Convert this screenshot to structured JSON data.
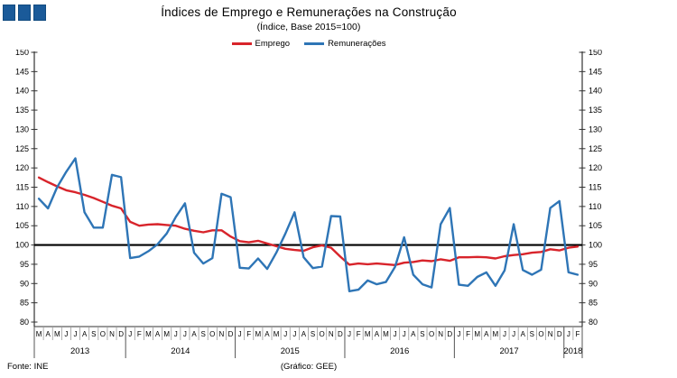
{
  "header": {
    "title": "Índices de Emprego e Remunerações na Construção",
    "subtitle": "(Índice, Base 2015=100)"
  },
  "legend": [
    {
      "label": "Emprego",
      "color": "#D8242B"
    },
    {
      "label": "Remunerações",
      "color": "#2E75B6"
    }
  ],
  "footer": {
    "source": "Fonte: INE",
    "credit": "(Gráfico: GEE)"
  },
  "logo": {
    "squares": 3,
    "color": "#1A5A99"
  },
  "chart_data": {
    "type": "line",
    "title": "Índices de Emprego e Remunerações na Construção",
    "subtitle": "(Índice, Base 2015=100)",
    "ylim": [
      80,
      150
    ],
    "ytick_step": 5,
    "y_axis_sides": "both",
    "grid": false,
    "baseline": 100,
    "legend_position": "top-center",
    "x_months": [
      "M",
      "A",
      "M",
      "J",
      "J",
      "A",
      "S",
      "O",
      "N",
      "D",
      "J",
      "F",
      "M",
      "A",
      "M",
      "J",
      "J",
      "A",
      "S",
      "O",
      "N",
      "D",
      "J",
      "F",
      "M",
      "A",
      "M",
      "J",
      "J",
      "A",
      "S",
      "O",
      "N",
      "D",
      "J",
      "F",
      "M",
      "A",
      "M",
      "J",
      "J",
      "A",
      "S",
      "O",
      "N",
      "D",
      "J",
      "F",
      "M",
      "A",
      "M",
      "J",
      "J",
      "A",
      "S",
      "O",
      "N",
      "D",
      "J",
      "F"
    ],
    "x_years": [
      {
        "label": "2013",
        "months": 10
      },
      {
        "label": "2014",
        "months": 12
      },
      {
        "label": "2015",
        "months": 12
      },
      {
        "label": "2016",
        "months": 12
      },
      {
        "label": "2017",
        "months": 12
      },
      {
        "label": "2018",
        "months": 2
      }
    ],
    "series": [
      {
        "name": "Emprego",
        "color": "#D8242B",
        "values": [
          117.5,
          116.3,
          115.2,
          114.2,
          113.7,
          113.0,
          112.2,
          111.2,
          110.2,
          109.5,
          106.0,
          105.0,
          105.3,
          105.4,
          105.2,
          105.0,
          104.2,
          103.7,
          103.3,
          103.8,
          103.8,
          102.2,
          101.0,
          100.7,
          101.1,
          100.4,
          99.7,
          99.0,
          98.7,
          98.5,
          99.4,
          99.9,
          99.3,
          97.0,
          94.9,
          95.2,
          95.0,
          95.2,
          95.0,
          94.8,
          95.4,
          95.6,
          96.0,
          95.8,
          96.3,
          95.9,
          96.8,
          96.8,
          96.9,
          96.8,
          96.5,
          97.1,
          97.4,
          97.6,
          98.0,
          98.2,
          98.9,
          98.6,
          99.3,
          99.6
        ]
      },
      {
        "name": "Remunerações",
        "color": "#2E75B6",
        "values": [
          112.0,
          109.5,
          115.0,
          119.0,
          122.5,
          108.5,
          104.5,
          104.5,
          118.2,
          117.6,
          96.6,
          97.0,
          98.4,
          100.2,
          103.0,
          107.3,
          110.8,
          98.0,
          95.2,
          96.6,
          113.3,
          112.4,
          94.1,
          93.9,
          96.5,
          93.8,
          98.0,
          103.0,
          108.5,
          96.8,
          94.0,
          94.4,
          107.5,
          107.4,
          88.0,
          88.4,
          90.8,
          89.8,
          90.4,
          94.3,
          102.0,
          92.3,
          89.8,
          89.0,
          105.4,
          109.6,
          89.7,
          89.4,
          91.7,
          92.9,
          89.4,
          93.4,
          105.4,
          93.5,
          92.3,
          93.6,
          109.6,
          111.4,
          92.9,
          92.3
        ]
      }
    ]
  }
}
